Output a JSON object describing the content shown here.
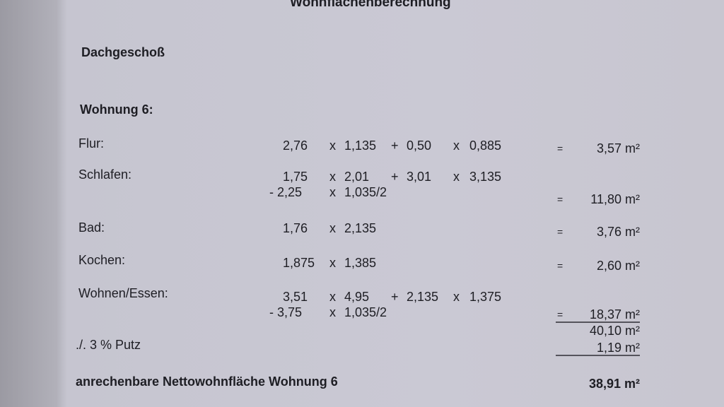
{
  "document": {
    "title": "Wohnflächenberechnung",
    "floor": "Dachgeschoß",
    "unit": "Wohnung 6:",
    "rows": [
      {
        "label": "Flur:",
        "lines": [
          [
            "2,76",
            "x",
            "1,135",
            "+",
            "0,50",
            "x",
            "0,885"
          ]
        ],
        "eq": "=",
        "result": "3,57 m²"
      },
      {
        "label": "Schlafen:",
        "lines": [
          [
            "1,75",
            "x",
            "2,01",
            "+",
            "3,01",
            "x",
            "3,135"
          ],
          [
            "- 2,25",
            "x",
            "1,035/2"
          ]
        ],
        "eq": "=",
        "result": "11,80 m²"
      },
      {
        "label": "Bad:",
        "lines": [
          [
            "1,76",
            "x",
            "2,135"
          ]
        ],
        "eq": "=",
        "result": "3,76 m²"
      },
      {
        "label": "Kochen:",
        "lines": [
          [
            "1,875",
            "x",
            "1,385"
          ]
        ],
        "eq": "=",
        "result": "2,60 m²"
      },
      {
        "label": "Wohnen/Essen:",
        "lines": [
          [
            "3,51",
            "x",
            "4,95",
            "+",
            "2,135",
            "x",
            "1,375"
          ],
          [
            "- 3,75",
            "x",
            "1,035/2"
          ]
        ],
        "eq": "=",
        "result": "18,37 m²"
      }
    ],
    "subtotal": "40,10 m²",
    "plaster_label": "./. 3 % Putz",
    "plaster_value": "1,19 m²",
    "net_label": "anrechenbare Nettowohnfläche Wohnung 6",
    "net_value": "38,91 m²"
  }
}
